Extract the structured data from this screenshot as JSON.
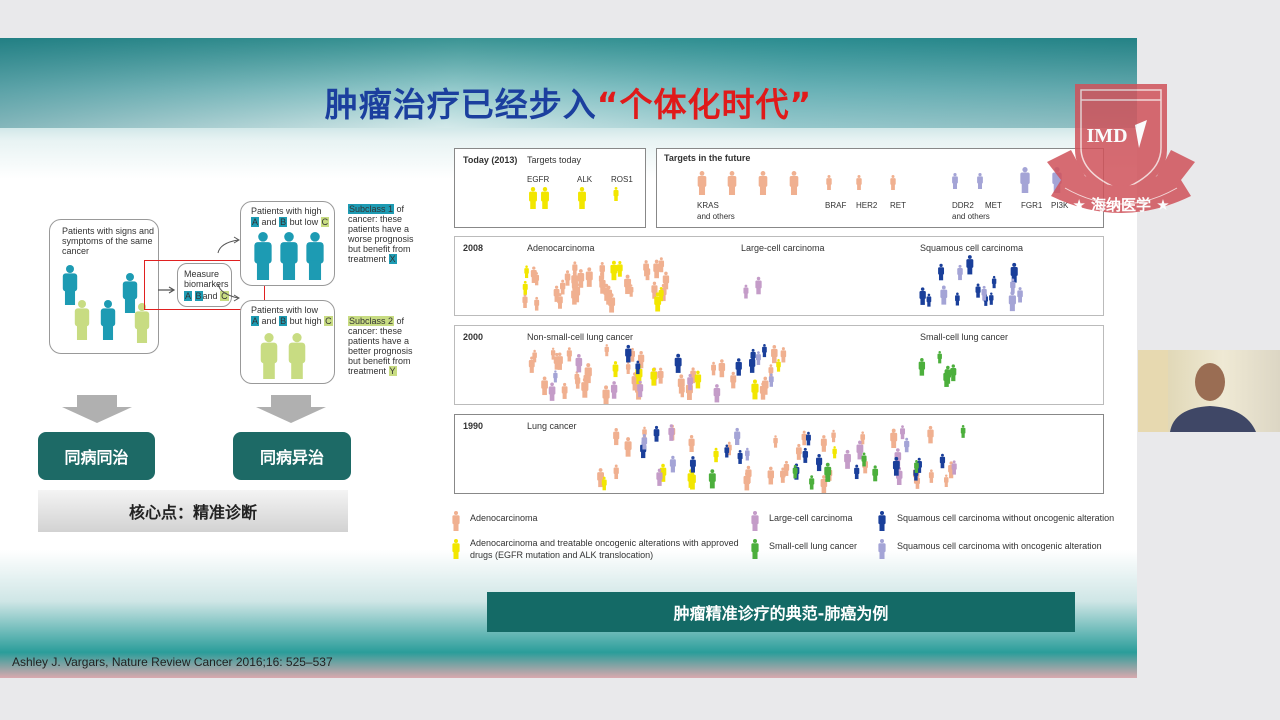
{
  "slide": {
    "title_part1": "肿瘤治疗已经步入",
    "title_part2": "“个体化时代”",
    "diagram": {
      "patients_box": "Patients with signs and symptoms of the same cancer",
      "measure": "Measure biomarkers",
      "measure_keys": [
        "A",
        "B",
        "and",
        "C"
      ],
      "high_box_line1": "Patients with high",
      "high_box_line2": [
        "A",
        "and",
        "B",
        "but low",
        "C"
      ],
      "low_box_line1": "Patients with low",
      "low_box_line2": [
        "A",
        "and",
        "B",
        "but high",
        "C"
      ],
      "subclass1": "Subclass 1",
      "subclass1_text": "of cancer: these patients have a worse prognosis but benefit from treatment",
      "subclass1_treat": "X",
      "subclass2": "Subclass 2",
      "subclass2_text": "of cancer: these patients have a better prognosis but benefit from treatment",
      "subclass2_treat": "Y"
    },
    "buttons": {
      "same": "同病同治",
      "diff": "同病异治"
    },
    "core": "核心点：精准诊断",
    "figure": {
      "today_label": "Today (2013)",
      "targets_today": "Targets today",
      "today_targets": [
        "EGFR",
        "ALK",
        "ROS1"
      ],
      "targets_future": "Targets in the future",
      "future_targets": [
        "KRAS",
        "BRAF",
        "HER2",
        "RET",
        "DDR2",
        "MET",
        "FGR1",
        "PI3K"
      ],
      "and_others": "and others",
      "rows": [
        {
          "year": "2008",
          "labels": [
            "Adenocarcinoma",
            "Large-cell carcinoma",
            "Squamous cell carcinoma"
          ]
        },
        {
          "year": "2000",
          "labels": [
            "Non-small-cell lung cancer",
            "Small-cell lung cancer"
          ]
        },
        {
          "year": "1990",
          "labels": [
            "Lung cancer"
          ]
        }
      ],
      "legend": [
        {
          "label": "Adenocarcinoma",
          "color": "#f0b090"
        },
        {
          "label": "Adenocarcinoma and treatable oncogenic alterations with approved drugs (EGFR mutation and ALK translocation)",
          "color": "#f2e600"
        },
        {
          "label": "Large-cell carcinoma",
          "color": "#c49cc8"
        },
        {
          "label": "Small-cell lung cancer",
          "color": "#4caf3c"
        },
        {
          "label": "Squamous cell carcinoma without oncogenic alteration",
          "color": "#1a3f9a"
        },
        {
          "label": "Squamous cell carcinoma with oncogenic alteration",
          "color": "#a4a4d6"
        }
      ]
    },
    "banner": "肿瘤精准诊疗的典范-肺癌为例",
    "citation": "Ashley J. Vargars, Nature Review Cancer 2016;16: 525–537",
    "logo": {
      "text": "IMD",
      "motto": "海纳医学"
    },
    "colors": {
      "teal": "#1d6a66",
      "title_blue": "#1b3f9e",
      "title_red": "#e01a1a",
      "diagram_teal": "#1d9bb3",
      "diagram_green": "#c8dc82"
    }
  }
}
